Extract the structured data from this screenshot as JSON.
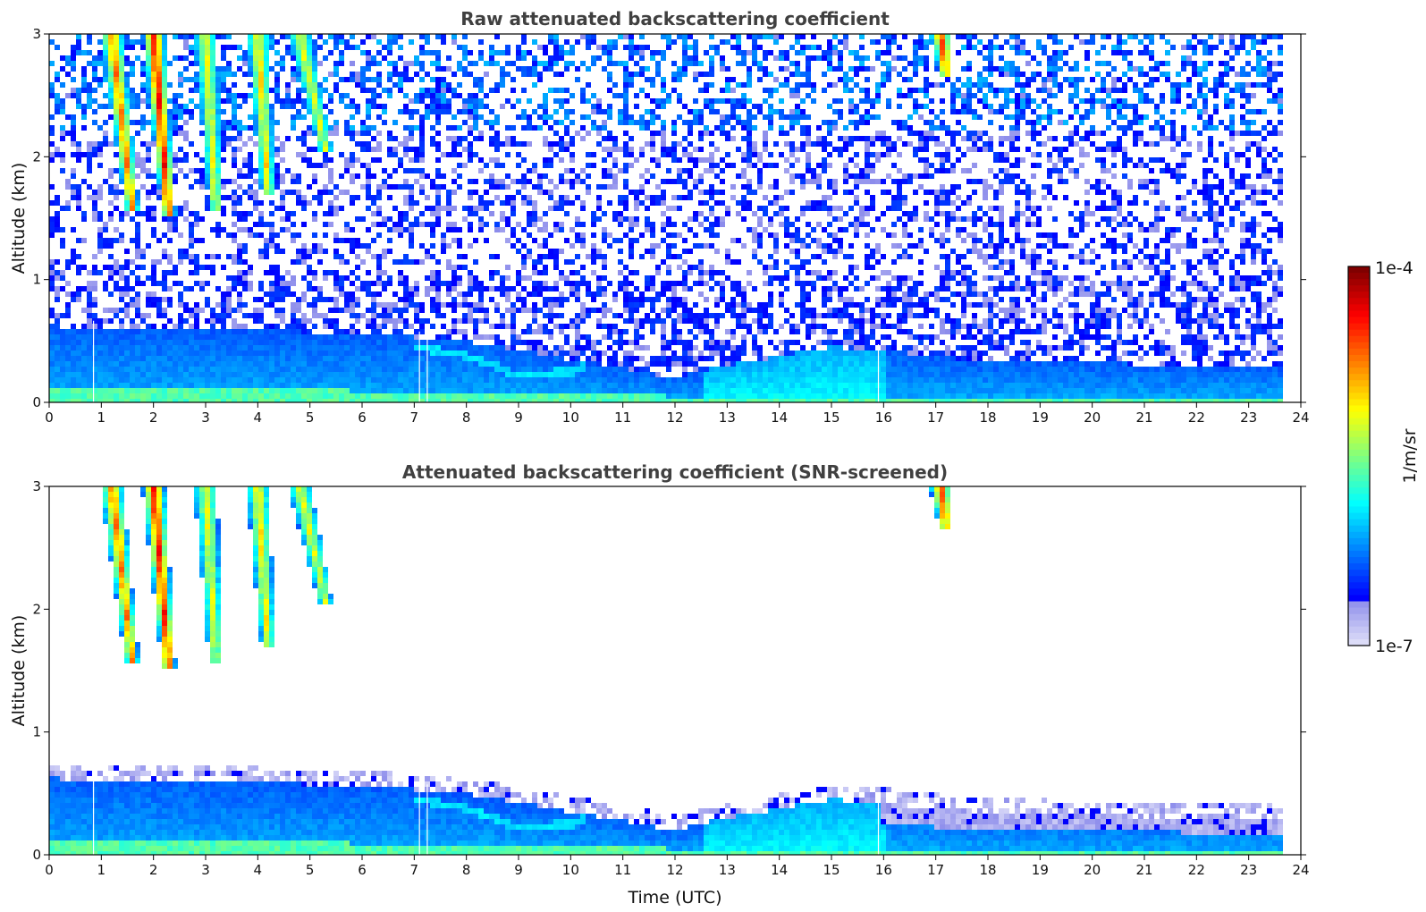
{
  "chart_data": [
    {
      "type": "heatmap",
      "title": "Raw attenuated backscattering coefficient",
      "xlabel": "",
      "ylabel": "Altitude (km)",
      "xlim": [
        0,
        24
      ],
      "ylim": [
        0,
        3
      ],
      "xticks": [
        "0",
        "1",
        "2",
        "3",
        "4",
        "5",
        "6",
        "7",
        "8",
        "9",
        "10",
        "11",
        "12",
        "13",
        "14",
        "15",
        "16",
        "17",
        "18",
        "19",
        "20",
        "21",
        "22",
        "23",
        "24"
      ],
      "yticks": [
        "0",
        "1",
        "2",
        "3"
      ],
      "data_end_time": 23.6,
      "screened": false,
      "boundary_layer_top_km": [
        [
          0,
          0.62
        ],
        [
          3,
          0.6
        ],
        [
          6,
          0.56
        ],
        [
          8,
          0.5
        ],
        [
          10,
          0.35
        ],
        [
          12,
          0.2
        ],
        [
          13,
          0.3
        ],
        [
          15,
          0.45
        ],
        [
          16,
          0.42
        ],
        [
          18,
          0.33
        ],
        [
          20,
          0.32
        ],
        [
          22,
          0.3
        ],
        [
          23.6,
          0.28
        ]
      ],
      "surface_layer_top_km": [
        [
          0,
          0.1
        ],
        [
          5,
          0.1
        ],
        [
          8,
          0.08
        ],
        [
          10,
          0.06
        ],
        [
          12,
          0.05
        ],
        [
          23.6,
          0.05
        ]
      ],
      "aerosol_sublayer": [
        [
          7,
          0.45
        ],
        [
          8,
          0.38
        ],
        [
          9,
          0.22
        ],
        [
          10,
          0.25
        ],
        [
          10.3,
          0.3
        ]
      ],
      "fallstreaks": [
        {
          "t_top": 1.2,
          "t_bottom": 1.6,
          "z_bottom": 1.55,
          "intensity": 0.7
        },
        {
          "t_top": 2.0,
          "t_bottom": 2.3,
          "z_bottom": 1.5,
          "intensity": 0.85
        },
        {
          "t_top": 3.0,
          "t_bottom": 3.2,
          "z_bottom": 1.55,
          "intensity": 0.5
        },
        {
          "t_top": 4.0,
          "t_bottom": 4.2,
          "z_bottom": 1.7,
          "intensity": 0.55
        },
        {
          "t_top": 4.8,
          "t_bottom": 5.3,
          "z_bottom": 2.05,
          "intensity": 0.5
        },
        {
          "t_top": 17.1,
          "t_bottom": 17.2,
          "z_bottom": 2.65,
          "intensity": 0.75
        }
      ],
      "data_gaps": [
        0.85,
        7.1,
        7.25,
        15.9
      ]
    },
    {
      "type": "heatmap",
      "title": "Attenuated backscattering coefficient (SNR-screened)",
      "xlabel": "Time (UTC)",
      "ylabel": "Altitude (km)",
      "xlim": [
        0,
        24
      ],
      "ylim": [
        0,
        3
      ],
      "xticks": [
        "0",
        "1",
        "2",
        "3",
        "4",
        "5",
        "6",
        "7",
        "8",
        "9",
        "10",
        "11",
        "12",
        "13",
        "14",
        "15",
        "16",
        "17",
        "18",
        "19",
        "20",
        "21",
        "22",
        "23",
        "24"
      ],
      "yticks": [
        "0",
        "1",
        "2",
        "3"
      ],
      "data_end_time": 23.6,
      "screened": true,
      "boundary_layer_top_km": [
        [
          0,
          0.62
        ],
        [
          3,
          0.6
        ],
        [
          6,
          0.56
        ],
        [
          8,
          0.5
        ],
        [
          10,
          0.35
        ],
        [
          12,
          0.2
        ],
        [
          13,
          0.3
        ],
        [
          15,
          0.45
        ],
        [
          16,
          0.42
        ],
        [
          18,
          0.33
        ],
        [
          20,
          0.32
        ],
        [
          22,
          0.3
        ],
        [
          23.6,
          0.28
        ]
      ],
      "surface_layer_top_km": [
        [
          0,
          0.1
        ],
        [
          5,
          0.1
        ],
        [
          8,
          0.08
        ],
        [
          10,
          0.06
        ],
        [
          12,
          0.05
        ],
        [
          23.6,
          0.05
        ]
      ],
      "aerosol_sublayer": [
        [
          7,
          0.45
        ],
        [
          8,
          0.38
        ],
        [
          9,
          0.22
        ],
        [
          10,
          0.25
        ],
        [
          10.3,
          0.3
        ]
      ],
      "fallstreaks": [
        {
          "t_top": 1.2,
          "t_bottom": 1.6,
          "z_bottom": 1.55,
          "intensity": 0.7
        },
        {
          "t_top": 2.0,
          "t_bottom": 2.3,
          "z_bottom": 1.5,
          "intensity": 0.85
        },
        {
          "t_top": 3.0,
          "t_bottom": 3.2,
          "z_bottom": 1.55,
          "intensity": 0.5
        },
        {
          "t_top": 4.0,
          "t_bottom": 4.2,
          "z_bottom": 1.7,
          "intensity": 0.55
        },
        {
          "t_top": 4.8,
          "t_bottom": 5.3,
          "z_bottom": 2.05,
          "intensity": 0.5
        },
        {
          "t_top": 17.1,
          "t_bottom": 17.2,
          "z_bottom": 2.65,
          "intensity": 0.75
        }
      ],
      "data_gaps": [
        0.85,
        7.1,
        7.25,
        15.9
      ]
    }
  ],
  "colorbar": {
    "label": "1/m/sr",
    "max_label": "1e-4",
    "min_label": "1e-7",
    "scale": "log",
    "colormap": "jet"
  }
}
